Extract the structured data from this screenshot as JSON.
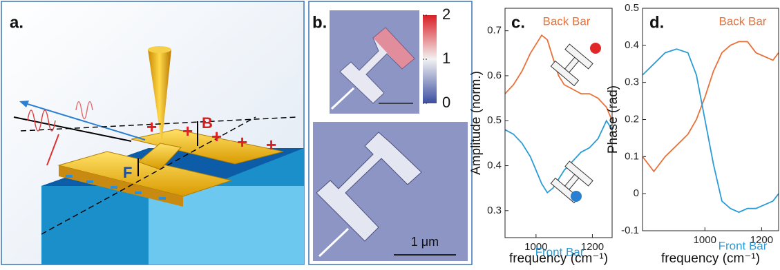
{
  "figure": {
    "panel_a": {
      "label": "a.",
      "bar_b": "B",
      "bar_f": "F",
      "charge": "+"
    },
    "panel_b": {
      "label": "b.",
      "colorbar_lim": [
        0,
        2
      ],
      "colorbar_ticks": [
        0,
        1,
        2
      ],
      "scale_bar": "1 μm"
    }
  },
  "chart_data": [
    {
      "type": "line",
      "panel_label": "c.",
      "ylabel": "Amplitude (norm.)",
      "xlabel": "frequency (cm⁻¹)",
      "x": [
        890,
        920,
        950,
        980,
        1000,
        1020,
        1040,
        1060,
        1080,
        1100,
        1130,
        1160,
        1190,
        1220,
        1250,
        1270
      ],
      "series": [
        {
          "name": "Back Bar",
          "color": "#e8713a",
          "values": [
            0.56,
            0.58,
            0.61,
            0.65,
            0.67,
            0.69,
            0.68,
            0.64,
            0.6,
            0.58,
            0.57,
            0.56,
            0.56,
            0.55,
            0.53,
            0.5
          ]
        },
        {
          "name": "Front Bar",
          "color": "#2a9bd6",
          "values": [
            0.48,
            0.47,
            0.45,
            0.42,
            0.39,
            0.36,
            0.34,
            0.35,
            0.37,
            0.39,
            0.41,
            0.43,
            0.44,
            0.46,
            0.5,
            0.48
          ]
        }
      ],
      "xlim": [
        890,
        1270
      ],
      "xticks": [
        1000,
        1200
      ],
      "ylim": [
        0.24,
        0.75
      ],
      "yticks": [
        0.3,
        0.4,
        0.5,
        0.6,
        0.7
      ]
    },
    {
      "type": "line",
      "panel_label": "d.",
      "ylabel": "Phase (rad)",
      "xlabel": "frequency (cm⁻¹)",
      "x": [
        780,
        820,
        860,
        900,
        940,
        970,
        1000,
        1030,
        1060,
        1090,
        1120,
        1150,
        1180,
        1210,
        1240,
        1260
      ],
      "series": [
        {
          "name": "Back Bar",
          "color": "#e8713a",
          "values": [
            0.1,
            0.06,
            0.1,
            0.13,
            0.16,
            0.2,
            0.26,
            0.33,
            0.38,
            0.4,
            0.41,
            0.41,
            0.38,
            0.37,
            0.36,
            0.38
          ]
        },
        {
          "name": "Front Bar",
          "color": "#2a9bd6",
          "values": [
            0.32,
            0.35,
            0.38,
            0.39,
            0.38,
            0.32,
            0.2,
            0.08,
            -0.02,
            -0.04,
            -0.05,
            -0.04,
            -0.04,
            -0.03,
            -0.02,
            0.0
          ]
        }
      ],
      "xlim": [
        780,
        1260
      ],
      "xticks": [
        1000,
        1200
      ],
      "ylim": [
        -0.1,
        0.5
      ],
      "yticks": [
        -0.1,
        0,
        0.1,
        0.2,
        0.3,
        0.4,
        0.5
      ]
    }
  ]
}
